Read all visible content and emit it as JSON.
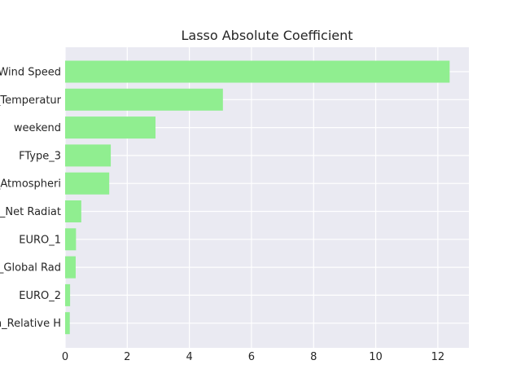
{
  "chart_data": {
    "type": "bar",
    "orientation": "horizontal",
    "title": "Lasso Absolute Coefficient",
    "xlabel": "",
    "ylabel": "",
    "categories": [
      "Wind Speed",
      "_Temperatur",
      "weekend",
      "FType_3",
      "_Atmospheri",
      "n_Net Radiat",
      "EURO_1",
      "_Global Rad",
      "EURO_2",
      "n_Relative H"
    ],
    "values": [
      12.38,
      5.08,
      2.91,
      1.47,
      1.42,
      0.52,
      0.35,
      0.34,
      0.16,
      0.15
    ],
    "xlim": [
      0,
      13
    ],
    "xticks": [
      0,
      2,
      4,
      6,
      8,
      10,
      12
    ],
    "grid": true,
    "bar_color": "#90ee90",
    "background_color": "#eaeaf2"
  }
}
